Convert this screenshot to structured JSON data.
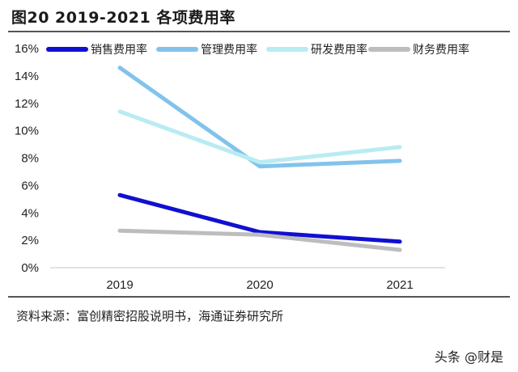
{
  "header": {
    "title": "图20 2019-2021 各项费用率"
  },
  "source": "资料来源：富创精密招股说明书，海通证券研究所",
  "watermark": "头条 @财是",
  "chart_data": {
    "type": "line",
    "title": "图20 2019-2021 各项费用率",
    "xlabel": "",
    "ylabel": "",
    "categories": [
      "2019",
      "2020",
      "2021"
    ],
    "ylim": [
      0,
      16
    ],
    "yticks": [
      "0%",
      "2%",
      "4%",
      "6%",
      "8%",
      "10%",
      "12%",
      "14%",
      "16%"
    ],
    "grid": false,
    "legend_position": "top",
    "series": [
      {
        "name": "销售费用率",
        "color": "#1010d0",
        "values": [
          5.3,
          2.6,
          1.9
        ]
      },
      {
        "name": "管理费用率",
        "color": "#82c3ec",
        "values": [
          14.6,
          7.4,
          7.8
        ]
      },
      {
        "name": "研发费用率",
        "color": "#b8ecf2",
        "values": [
          11.4,
          7.7,
          8.8
        ]
      },
      {
        "name": "财务费用率",
        "color": "#bdbdbd",
        "values": [
          2.7,
          2.4,
          1.3
        ]
      }
    ]
  }
}
